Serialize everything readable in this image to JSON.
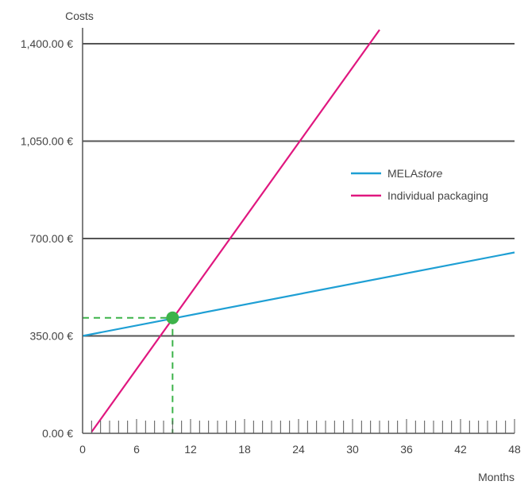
{
  "chart_data": {
    "type": "line",
    "title": "",
    "xlabel": "Months",
    "ylabel": "Costs",
    "xlim": [
      0,
      48
    ],
    "ylim": [
      0,
      1400
    ],
    "x_ticks": [
      0,
      6,
      12,
      18,
      24,
      30,
      36,
      42,
      48
    ],
    "x_minor_step": 1,
    "y_ticks": [
      0,
      350,
      700,
      1050,
      1400
    ],
    "y_tick_labels": [
      "0.00 €",
      "350.00 €",
      "700.00 €",
      "1,050.00 €",
      "1,400.00 €"
    ],
    "grid": "horizontal",
    "legend_position": "right",
    "series": [
      {
        "name": "MELAstore",
        "name_plain": "MELA",
        "name_italic": "store",
        "color": "#1e9fd4",
        "points": [
          [
            0,
            350
          ],
          [
            48,
            650
          ]
        ]
      },
      {
        "name": "Individual packaging",
        "name_plain": "Individual packaging",
        "name_italic": "",
        "color": "#e0177f",
        "points": [
          [
            1,
            5
          ],
          [
            33,
            1450
          ]
        ]
      }
    ],
    "break_even": {
      "x": 10,
      "y": 415,
      "color": "#3db34a",
      "guide_color": "#3db34a"
    }
  }
}
